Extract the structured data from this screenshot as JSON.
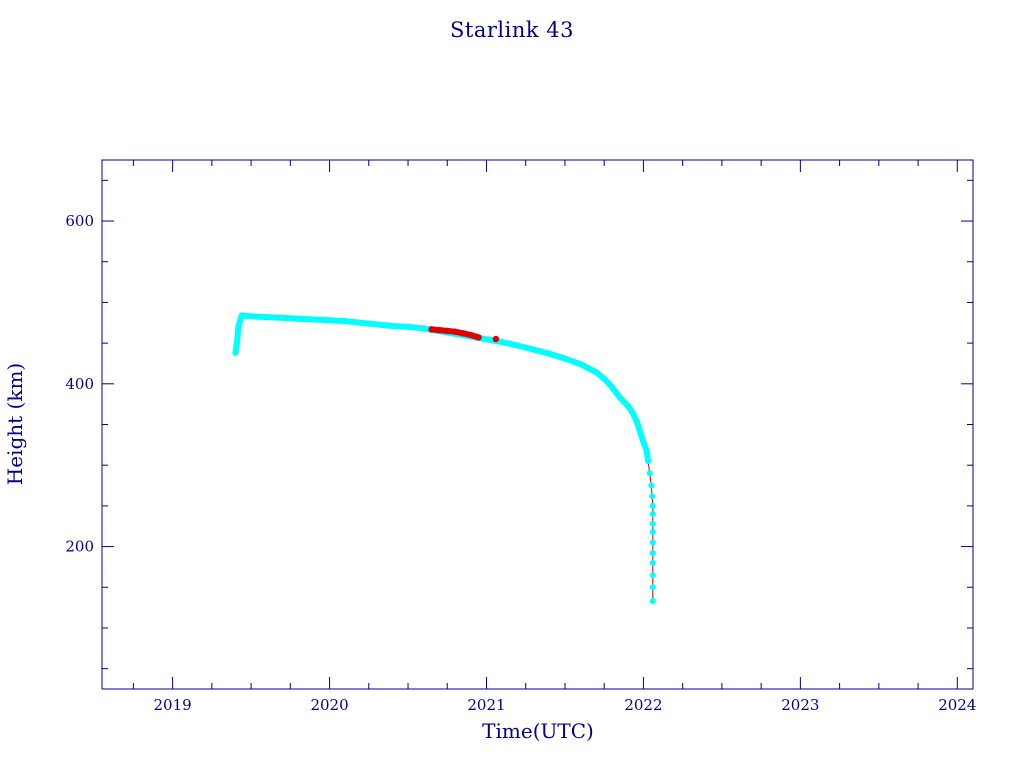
{
  "colors": {
    "frame": "#00008b",
    "text": "#00008b",
    "primary_marker": "#00ffff",
    "highlight_marker": "#e00000",
    "connector_line": "#cc0000",
    "background": "#ffffff"
  },
  "chart_data": {
    "type": "scatter",
    "title": "Starlink 43",
    "xlabel": "Time(UTC)",
    "ylabel": "Height (km)",
    "xlim": [
      2018.55,
      2024.1
    ],
    "ylim": [
      25,
      675
    ],
    "x_ticks": [
      2019,
      2020,
      2021,
      2022,
      2023,
      2024
    ],
    "x_tick_labels": [
      "2019",
      "2020",
      "2021",
      "2022",
      "2023",
      "2024"
    ],
    "y_ticks": [
      200,
      400,
      600
    ],
    "y_tick_labels": [
      "200",
      "400",
      "600"
    ],
    "grid": false,
    "legend": "none",
    "series": [
      {
        "marker_color": "primary_marker",
        "x": [
          2019.4,
          2019.41,
          2019.42,
          2019.44,
          2019.5,
          2019.6,
          2019.7,
          2019.8,
          2019.9,
          2020.0,
          2020.1,
          2020.2,
          2020.3,
          2020.4,
          2020.5,
          2020.6,
          2021.08,
          2021.2,
          2021.3,
          2021.4,
          2021.5,
          2021.6,
          2021.7,
          2021.75,
          2021.8,
          2021.83,
          2021.86,
          2021.9,
          2021.93,
          2021.96,
          2021.98,
          2022.0,
          2022.02,
          2022.03,
          2022.04,
          2022.05,
          2022.055,
          2022.06,
          2022.06,
          2022.06,
          2022.06,
          2022.06,
          2022.06,
          2022.06,
          2022.06,
          2022.06,
          2022.06
        ],
        "y": [
          438,
          451,
          471,
          484,
          483,
          482,
          481,
          480,
          479,
          478,
          477,
          475,
          473,
          471,
          470,
          468,
          452,
          447,
          442,
          437,
          431,
          424,
          414,
          406,
          396,
          388,
          381,
          373,
          365,
          352,
          340,
          328,
          318,
          305,
          290,
          275,
          262,
          250,
          240,
          228,
          218,
          205,
          192,
          180,
          165,
          150,
          133
        ]
      },
      {
        "marker_color": "highlight_marker",
        "x": [
          2020.65,
          2020.7,
          2020.75,
          2020.8,
          2020.85,
          2020.9,
          2020.95,
          2021.06
        ],
        "y": [
          467,
          466,
          465,
          464,
          462,
          460,
          457,
          455
        ]
      }
    ]
  }
}
